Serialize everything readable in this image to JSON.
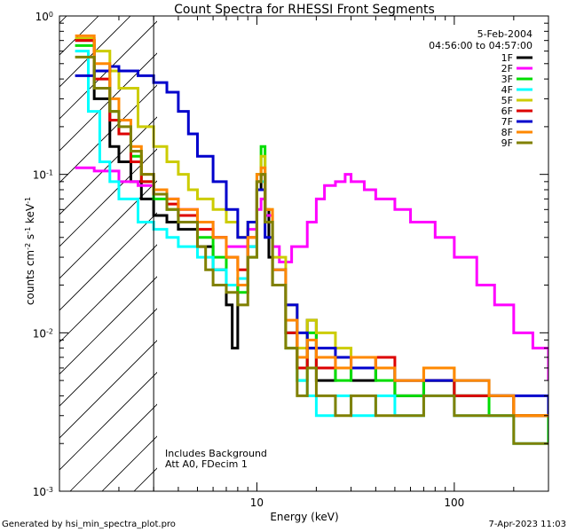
{
  "chart_data": {
    "type": "line",
    "title": "Count Spectra for RHESSI Front Segments",
    "xlabel": "Energy (keV)",
    "ylabel": "counts cm^-2 s^-1 keV^-1",
    "x_scale": "log",
    "y_scale": "log",
    "xlim": [
      1,
      300
    ],
    "ylim": [
      0.001,
      1
    ],
    "x_ticks": [
      {
        "value": 10,
        "label": "10"
      },
      {
        "value": 100,
        "label": "100"
      }
    ],
    "y_ticks": [
      {
        "value": 1,
        "base": "10",
        "exp": "0"
      },
      {
        "value": 0.1,
        "base": "10",
        "exp": "-1"
      },
      {
        "value": 0.01,
        "base": "10",
        "exp": "-2"
      },
      {
        "value": 0.001,
        "base": "10",
        "exp": "-3"
      }
    ],
    "date": "5-Feb-2004",
    "time_range": "04:56:00 to 04:57:00",
    "notes": [
      "Includes Background",
      "Att A0, FDecim 1"
    ],
    "footer_left": "Generated by hsi_min_spectra_plot.pro",
    "footer_right": "7-Apr-2023 11:03",
    "hatched_region_max_keV": 3,
    "series": [
      {
        "name": "1F",
        "color": "#000000",
        "x": [
          1.2,
          1.5,
          1.8,
          2.0,
          2.3,
          2.6,
          3.0,
          3.5,
          4.0,
          5.0,
          6.0,
          7.0,
          7.5,
          8.0,
          9.0,
          10.0,
          10.5,
          11.0,
          11.5,
          12.0,
          14.0,
          16.0,
          18.0,
          20.0,
          25.0,
          30.0,
          40.0,
          50.0,
          70.0,
          100.0,
          150.0,
          200.0,
          250.0,
          300.0
        ],
        "y": [
          0.7,
          0.3,
          0.15,
          0.12,
          0.09,
          0.07,
          0.055,
          0.05,
          0.045,
          0.035,
          0.025,
          0.015,
          0.008,
          0.02,
          0.035,
          0.08,
          0.1,
          0.06,
          0.03,
          0.02,
          0.01,
          0.006,
          0.012,
          0.005,
          0.006,
          0.005,
          0.006,
          0.004,
          0.005,
          0.004,
          0.004,
          0.003,
          0.003,
          0.0025
        ]
      },
      {
        "name": "2F",
        "color": "#ff00ff",
        "x": [
          1.2,
          1.5,
          2.0,
          2.5,
          3.0,
          3.5,
          4.0,
          5.0,
          6.0,
          7.0,
          8.0,
          9.0,
          10.0,
          10.5,
          11.0,
          12.0,
          13.0,
          15.0,
          18.0,
          20.0,
          22.0,
          25.0,
          28.0,
          30.0,
          35.0,
          40.0,
          50.0,
          60.0,
          80.0,
          100.0,
          130.0,
          160.0,
          200.0,
          250.0,
          300.0
        ],
        "y": [
          0.11,
          0.105,
          0.09,
          0.085,
          0.075,
          0.07,
          0.06,
          0.05,
          0.04,
          0.035,
          0.035,
          0.045,
          0.06,
          0.07,
          0.055,
          0.035,
          0.028,
          0.035,
          0.05,
          0.07,
          0.085,
          0.09,
          0.1,
          0.09,
          0.08,
          0.07,
          0.06,
          0.05,
          0.04,
          0.03,
          0.02,
          0.015,
          0.01,
          0.008,
          0.005
        ]
      },
      {
        "name": "3F",
        "color": "#00dd00",
        "x": [
          1.2,
          1.5,
          1.8,
          2.0,
          2.3,
          2.6,
          3.0,
          3.5,
          4.0,
          5.0,
          6.0,
          7.0,
          8.0,
          9.0,
          10.0,
          10.5,
          11.0,
          12.0,
          14.0,
          16.0,
          18.0,
          20.0,
          25.0,
          30.0,
          40.0,
          50.0,
          70.0,
          100.0,
          150.0,
          200.0,
          300.0
        ],
        "y": [
          0.65,
          0.45,
          0.25,
          0.18,
          0.13,
          0.09,
          0.07,
          0.06,
          0.05,
          0.04,
          0.03,
          0.02,
          0.018,
          0.03,
          0.1,
          0.15,
          0.05,
          0.02,
          0.008,
          0.005,
          0.01,
          0.006,
          0.005,
          0.006,
          0.005,
          0.004,
          0.005,
          0.004,
          0.003,
          0.003,
          0.002
        ]
      },
      {
        "name": "4F",
        "color": "#00ffff",
        "x": [
          1.2,
          1.4,
          1.6,
          1.8,
          2.0,
          2.5,
          3.0,
          3.5,
          4.0,
          5.0,
          6.0,
          7.0,
          8.0,
          9.0,
          10.0,
          11.0,
          12.0,
          14.0,
          16.0,
          18.0,
          20.0,
          25.0,
          30.0,
          40.0,
          50.0,
          70.0,
          100.0,
          150.0,
          200.0,
          300.0
        ],
        "y": [
          0.6,
          0.25,
          0.12,
          0.09,
          0.07,
          0.05,
          0.045,
          0.04,
          0.035,
          0.03,
          0.025,
          0.02,
          0.022,
          0.035,
          0.09,
          0.05,
          0.02,
          0.01,
          0.005,
          0.004,
          0.003,
          0.004,
          0.003,
          0.004,
          0.003,
          0.004,
          0.003,
          0.003,
          0.002,
          0.002
        ]
      },
      {
        "name": "5F",
        "color": "#cccc00",
        "x": [
          1.2,
          1.5,
          1.8,
          2.0,
          2.5,
          3.0,
          3.5,
          4.0,
          4.5,
          5.0,
          6.0,
          7.0,
          8.0,
          9.0,
          10.0,
          10.5,
          11.0,
          12.0,
          14.0,
          16.0,
          18.0,
          20.0,
          25.0,
          30.0,
          40.0,
          50.0,
          70.0,
          100.0,
          150.0,
          200.0,
          300.0
        ],
        "y": [
          0.72,
          0.6,
          0.45,
          0.35,
          0.2,
          0.15,
          0.12,
          0.1,
          0.08,
          0.07,
          0.06,
          0.05,
          0.04,
          0.05,
          0.09,
          0.13,
          0.06,
          0.03,
          0.015,
          0.008,
          0.012,
          0.01,
          0.008,
          0.007,
          0.006,
          0.005,
          0.006,
          0.005,
          0.004,
          0.003,
          0.003
        ]
      },
      {
        "name": "6F",
        "color": "#dd0000",
        "x": [
          1.2,
          1.5,
          1.8,
          2.0,
          2.3,
          2.6,
          3.0,
          3.5,
          4.0,
          5.0,
          6.0,
          7.0,
          8.0,
          9.0,
          10.0,
          10.5,
          11.0,
          12.0,
          14.0,
          16.0,
          18.0,
          20.0,
          25.0,
          30.0,
          40.0,
          50.0,
          70.0,
          100.0,
          150.0,
          200.0,
          300.0
        ],
        "y": [
          0.7,
          0.4,
          0.22,
          0.18,
          0.12,
          0.09,
          0.075,
          0.065,
          0.055,
          0.045,
          0.04,
          0.03,
          0.025,
          0.04,
          0.09,
          0.1,
          0.05,
          0.02,
          0.01,
          0.006,
          0.008,
          0.006,
          0.007,
          0.006,
          0.007,
          0.005,
          0.005,
          0.004,
          0.004,
          0.003,
          0.003
        ]
      },
      {
        "name": "7F",
        "color": "#0000cc",
        "x": [
          1.2,
          1.5,
          1.8,
          2.0,
          2.5,
          3.0,
          3.5,
          4.0,
          4.5,
          5.0,
          6.0,
          7.0,
          8.0,
          9.0,
          10.0,
          11.0,
          12.0,
          14.0,
          16.0,
          18.0,
          20.0,
          25.0,
          30.0,
          40.0,
          50.0,
          70.0,
          100.0,
          150.0,
          200.0,
          300.0
        ],
        "y": [
          0.42,
          0.45,
          0.48,
          0.45,
          0.42,
          0.38,
          0.33,
          0.25,
          0.18,
          0.13,
          0.09,
          0.06,
          0.04,
          0.05,
          0.08,
          0.04,
          0.025,
          0.015,
          0.01,
          0.008,
          0.008,
          0.007,
          0.006,
          0.006,
          0.005,
          0.005,
          0.005,
          0.004,
          0.004,
          0.003
        ]
      },
      {
        "name": "8F",
        "color": "#ff8800",
        "x": [
          1.2,
          1.5,
          1.8,
          2.0,
          2.3,
          2.6,
          3.0,
          3.5,
          4.0,
          5.0,
          6.0,
          7.0,
          8.0,
          9.0,
          10.0,
          10.5,
          11.0,
          12.0,
          14.0,
          16.0,
          18.0,
          20.0,
          25.0,
          30.0,
          40.0,
          50.0,
          70.0,
          100.0,
          150.0,
          200.0,
          300.0
        ],
        "y": [
          0.75,
          0.5,
          0.3,
          0.22,
          0.15,
          0.1,
          0.08,
          0.07,
          0.06,
          0.05,
          0.04,
          0.03,
          0.02,
          0.04,
          0.1,
          0.11,
          0.06,
          0.025,
          0.012,
          0.007,
          0.009,
          0.007,
          0.006,
          0.007,
          0.006,
          0.005,
          0.006,
          0.005,
          0.004,
          0.003,
          0.003
        ]
      },
      {
        "name": "9F",
        "color": "#808000",
        "x": [
          1.2,
          1.5,
          1.8,
          2.0,
          2.3,
          2.6,
          3.0,
          3.5,
          4.0,
          5.0,
          5.5,
          6.0,
          7.0,
          8.0,
          9.0,
          10.0,
          10.5,
          11.0,
          12.0,
          14.0,
          16.0,
          18.0,
          20.0,
          25.0,
          30.0,
          40.0,
          50.0,
          70.0,
          100.0,
          150.0,
          200.0,
          300.0
        ],
        "y": [
          0.55,
          0.35,
          0.25,
          0.2,
          0.14,
          0.1,
          0.075,
          0.06,
          0.05,
          0.035,
          0.025,
          0.02,
          0.018,
          0.015,
          0.03,
          0.09,
          0.1,
          0.05,
          0.02,
          0.008,
          0.004,
          0.006,
          0.004,
          0.003,
          0.004,
          0.003,
          0.003,
          0.004,
          0.003,
          0.003,
          0.002,
          0.002
        ]
      }
    ]
  }
}
